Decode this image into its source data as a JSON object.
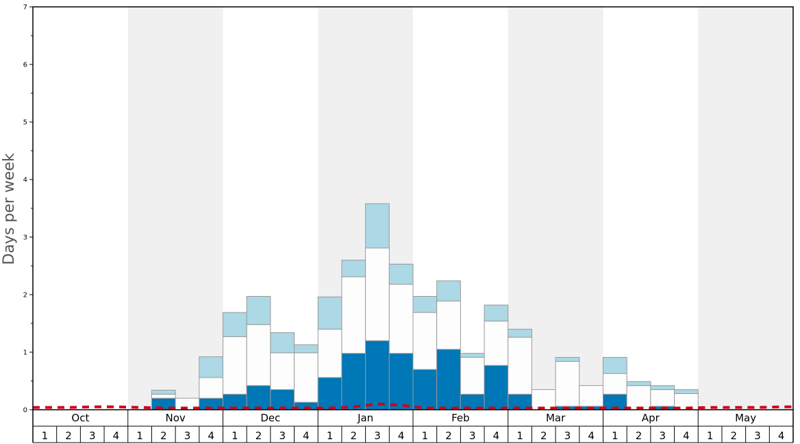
{
  "chart_data": {
    "type": "bar",
    "ylabel": "Days per week",
    "ylim": [
      0,
      7
    ],
    "y_ticks": [
      0,
      1,
      2,
      3,
      4,
      5,
      6,
      7
    ],
    "grid": false,
    "stacked": true,
    "months": [
      "Oct",
      "Nov",
      "Dec",
      "Jan",
      "Feb",
      "Mar",
      "Apr",
      "May"
    ],
    "week_labels": [
      "1",
      "2",
      "3",
      "4"
    ],
    "series": [
      {
        "values": [
          0,
          0,
          0,
          0,
          0,
          0.2,
          0,
          0.2,
          0.27,
          0.42,
          0.35,
          0.13,
          0.56,
          0.98,
          1.2,
          0.98,
          0.7,
          1.05,
          0.27,
          0.77,
          0.27,
          0,
          0.06,
          0.06,
          0.27,
          0,
          0.06,
          0,
          0,
          0,
          0,
          0
        ],
        "color": "#0077b6"
      },
      {
        "values": [
          0,
          0,
          0,
          0,
          0,
          0.07,
          0.2,
          0.36,
          1.0,
          1.06,
          0.64,
          0.86,
          0.84,
          1.33,
          1.61,
          1.2,
          0.99,
          0.84,
          0.64,
          0.77,
          0.99,
          0.35,
          0.78,
          0.36,
          0.36,
          0.42,
          0.29,
          0.28,
          0,
          0,
          0,
          0
        ],
        "color": "#fdfdfd"
      },
      {
        "values": [
          0,
          0,
          0,
          0,
          0,
          0.07,
          0,
          0.36,
          0.42,
          0.49,
          0.35,
          0.14,
          0.56,
          0.29,
          0.77,
          0.35,
          0.28,
          0.35,
          0.07,
          0.28,
          0.14,
          0,
          0.07,
          0,
          0.28,
          0.07,
          0.07,
          0.07,
          0,
          0,
          0,
          0
        ],
        "color": "#add8e6"
      }
    ],
    "baseline": {
      "values": [
        0.04,
        0.04,
        0.05,
        0.05,
        0.04,
        0.03,
        0.03,
        0.03,
        0.03,
        0.03,
        0.03,
        0.03,
        0.03,
        0.05,
        0.1,
        0.08,
        0.03,
        0.03,
        0.03,
        0.03,
        0.03,
        0.03,
        0.03,
        0.03,
        0.03,
        0.03,
        0.03,
        0.03,
        0.04,
        0.04,
        0.04,
        0.05
      ],
      "color": "#d0021b"
    },
    "colors": {
      "shade": "#f0f0f0",
      "bar_stroke": "#999999",
      "axis": "#000000"
    }
  }
}
